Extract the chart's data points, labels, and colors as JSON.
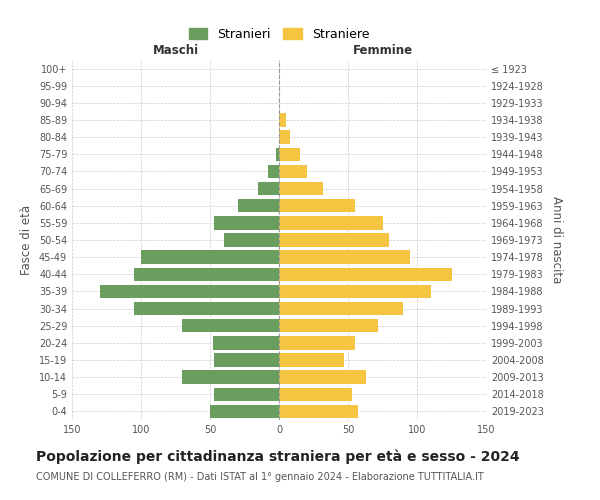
{
  "age_groups": [
    "0-4",
    "5-9",
    "10-14",
    "15-19",
    "20-24",
    "25-29",
    "30-34",
    "35-39",
    "40-44",
    "45-49",
    "50-54",
    "55-59",
    "60-64",
    "65-69",
    "70-74",
    "75-79",
    "80-84",
    "85-89",
    "90-94",
    "95-99",
    "100+"
  ],
  "birth_years": [
    "2019-2023",
    "2014-2018",
    "2009-2013",
    "2004-2008",
    "1999-2003",
    "1994-1998",
    "1989-1993",
    "1984-1988",
    "1979-1983",
    "1974-1978",
    "1969-1973",
    "1964-1968",
    "1959-1963",
    "1954-1958",
    "1949-1953",
    "1944-1948",
    "1939-1943",
    "1934-1938",
    "1929-1933",
    "1924-1928",
    "≤ 1923"
  ],
  "maschi": [
    50,
    47,
    70,
    47,
    48,
    70,
    105,
    130,
    105,
    100,
    40,
    47,
    30,
    15,
    8,
    2,
    0,
    0,
    0,
    0,
    0
  ],
  "femmine": [
    57,
    53,
    63,
    47,
    55,
    72,
    90,
    110,
    125,
    95,
    80,
    75,
    55,
    32,
    20,
    15,
    8,
    5,
    0,
    0,
    0
  ],
  "maschi_color": "#6a9e5e",
  "femmine_color": "#f5c542",
  "title": "Popolazione per cittadinanza straniera per età e sesso - 2024",
  "subtitle": "COMUNE DI COLLEFERRO (RM) - Dati ISTAT al 1° gennaio 2024 - Elaborazione TUTTITALIA.IT",
  "xlabel_left": "Maschi",
  "xlabel_right": "Femmine",
  "ylabel_left": "Fasce di età",
  "ylabel_right": "Anni di nascita",
  "xlim": 150,
  "legend_stranieri": "Stranieri",
  "legend_straniere": "Straniere",
  "background_color": "#ffffff",
  "grid_color": "#cccccc",
  "title_fontsize": 10,
  "subtitle_fontsize": 7,
  "tick_fontsize": 7,
  "label_fontsize": 8.5
}
